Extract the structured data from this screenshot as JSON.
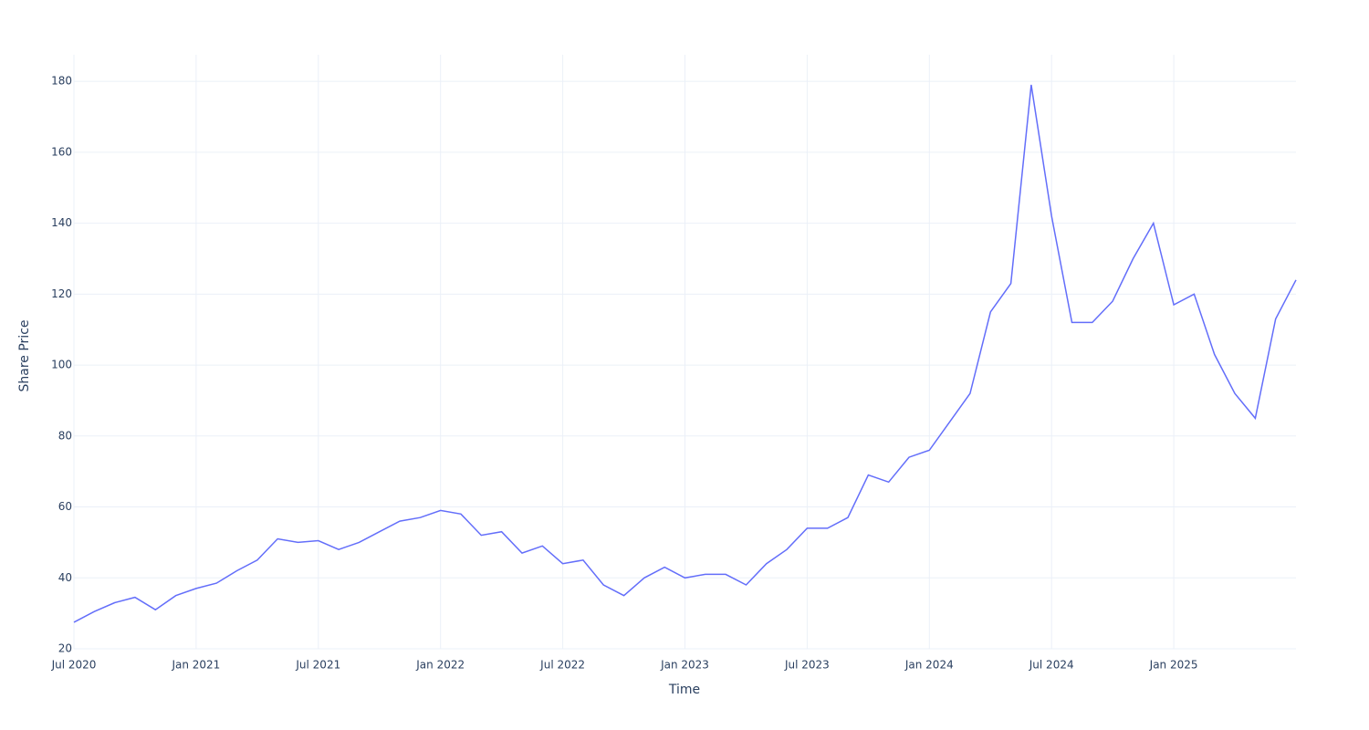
{
  "chart_data": {
    "type": "line",
    "x_label": "Time",
    "y_label": "Share Price",
    "x": [
      "2020-07",
      "2020-08",
      "2020-09",
      "2020-10",
      "2020-11",
      "2020-12",
      "2021-01",
      "2021-02",
      "2021-03",
      "2021-04",
      "2021-05",
      "2021-06",
      "2021-07",
      "2021-08",
      "2021-09",
      "2021-10",
      "2021-11",
      "2021-12",
      "2022-01",
      "2022-02",
      "2022-03",
      "2022-04",
      "2022-05",
      "2022-06",
      "2022-07",
      "2022-08",
      "2022-09",
      "2022-10",
      "2022-11",
      "2022-12",
      "2023-01",
      "2023-02",
      "2023-03",
      "2023-04",
      "2023-05",
      "2023-06",
      "2023-07",
      "2023-08",
      "2023-09",
      "2023-10",
      "2023-11",
      "2023-12",
      "2024-01",
      "2024-02",
      "2024-03",
      "2024-04",
      "2024-05",
      "2024-06",
      "2024-07",
      "2024-08",
      "2024-09",
      "2024-10",
      "2024-11",
      "2024-12",
      "2025-01",
      "2025-02",
      "2025-03",
      "2025-04",
      "2025-05",
      "2025-06",
      "2025-07"
    ],
    "series": [
      {
        "name": "Share Price",
        "color": "#636efa",
        "values": [
          27.5,
          30.5,
          33,
          34.5,
          31,
          35,
          37,
          38.5,
          42,
          45,
          51,
          50,
          50.5,
          48,
          50,
          53,
          56,
          57,
          59,
          58,
          52,
          53,
          47,
          49,
          44,
          45,
          38,
          35,
          40,
          43,
          40,
          41,
          41,
          38,
          44,
          48,
          54,
          54,
          57,
          69,
          67,
          74,
          76,
          84,
          92,
          115,
          123,
          179,
          142,
          112,
          112,
          118,
          130,
          140,
          117,
          120,
          103,
          92,
          85,
          113,
          124
        ]
      }
    ],
    "xlim": [
      "2020-07",
      "2025-07"
    ],
    "xticks": [
      {
        "value": "2020-07",
        "label": "Jul 2020"
      },
      {
        "value": "2021-01",
        "label": "Jan 2021"
      },
      {
        "value": "2021-07",
        "label": "Jul 2021"
      },
      {
        "value": "2022-01",
        "label": "Jan 2022"
      },
      {
        "value": "2022-07",
        "label": "Jul 2022"
      },
      {
        "value": "2023-01",
        "label": "Jan 2023"
      },
      {
        "value": "2023-07",
        "label": "Jul 2023"
      },
      {
        "value": "2024-01",
        "label": "Jan 2024"
      },
      {
        "value": "2024-07",
        "label": "Jul 2024"
      },
      {
        "value": "2025-01",
        "label": "Jan 2025"
      }
    ],
    "ylim": [
      20,
      187.5
    ],
    "yticks": [
      20,
      40,
      60,
      80,
      100,
      120,
      140,
      160,
      180
    ],
    "grid": true
  }
}
